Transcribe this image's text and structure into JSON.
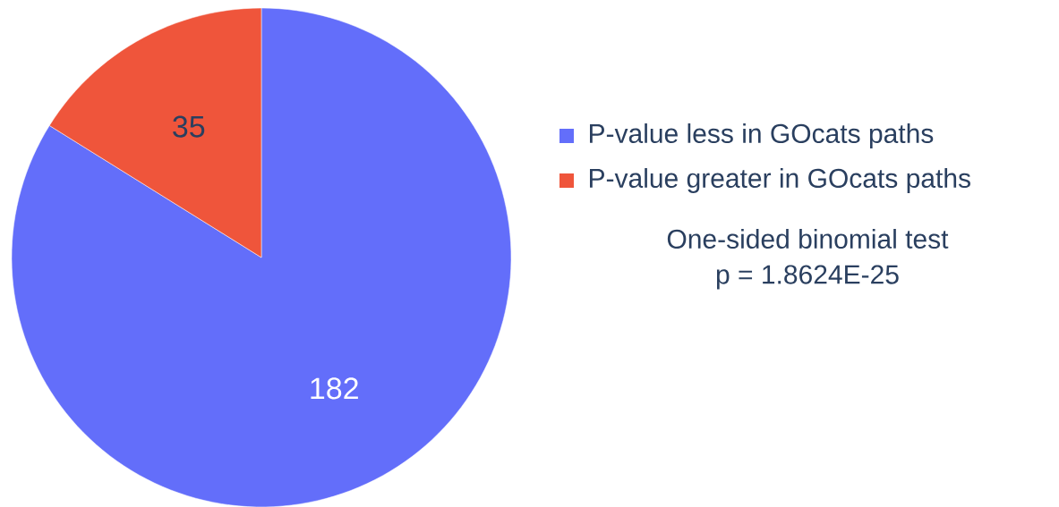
{
  "chart_data": {
    "type": "pie",
    "categories": [
      "P-value less in GOcats paths",
      "P-value greater in GOcats paths"
    ],
    "values": [
      182,
      35
    ],
    "colors": [
      "#636efa",
      "#ef553b"
    ],
    "data_labels": true,
    "legend": "right",
    "annotations": [
      "One-sided binomial test",
      "p = 1.8624E-25"
    ]
  }
}
